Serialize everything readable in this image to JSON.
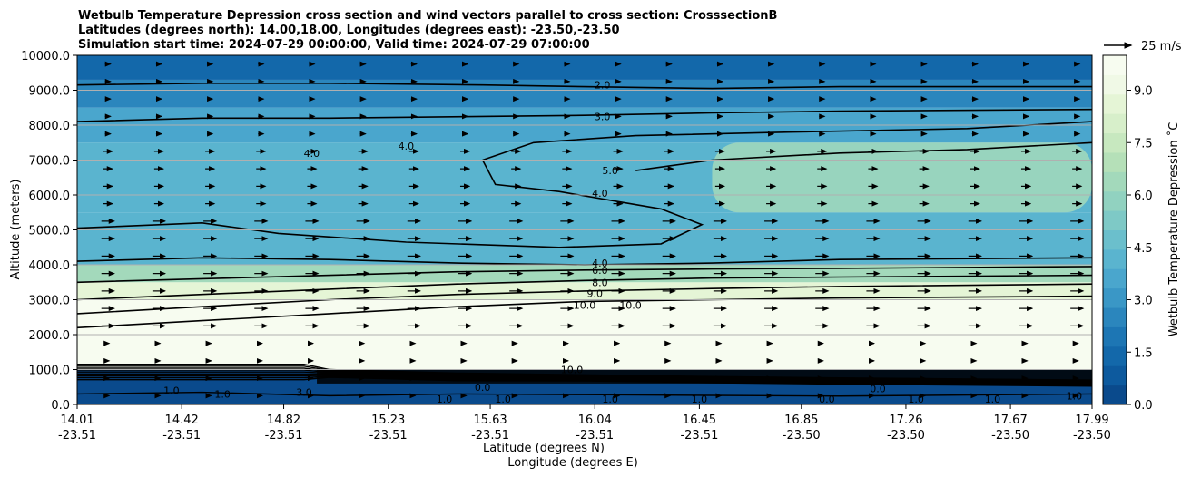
{
  "title": {
    "line1": "Wetbulb Temperature Depression cross section and wind vectors parallel to cross section: CrosssectionB",
    "line2": "Latitudes (degrees north): 14.00,18.00, Longitudes (degrees east): -23.50,-23.50",
    "line3": "Simulation start time: 2024-07-29 00:00:00, Valid time: 2024-07-29 07:00:00"
  },
  "chart_data": {
    "type": "heatmap",
    "xlabel": "Latitude (degrees N)",
    "xlabel2": "Longitude (degrees E)",
    "ylabel": "Altitude (meters)",
    "ylim": [
      0,
      10000
    ],
    "yticks": [
      "0.0",
      "1000.0",
      "2000.0",
      "3000.0",
      "4000.0",
      "5000.0",
      "6000.0",
      "7000.0",
      "8000.0",
      "9000.0",
      "10000.0"
    ],
    "ytick_values": [
      0,
      1000,
      2000,
      3000,
      4000,
      5000,
      6000,
      7000,
      8000,
      9000,
      10000
    ],
    "xlim": [
      14.01,
      17.99
    ],
    "xticks": [
      {
        "lat": "14.01",
        "lon": "-23.51",
        "value": 14.01
      },
      {
        "lat": "14.42",
        "lon": "-23.51",
        "value": 14.42
      },
      {
        "lat": "14.82",
        "lon": "-23.51",
        "value": 14.82
      },
      {
        "lat": "15.23",
        "lon": "-23.51",
        "value": 15.23
      },
      {
        "lat": "15.63",
        "lon": "-23.51",
        "value": 15.63
      },
      {
        "lat": "16.04",
        "lon": "-23.51",
        "value": 16.04
      },
      {
        "lat": "16.45",
        "lon": "-23.51",
        "value": 16.45
      },
      {
        "lat": "16.85",
        "lon": "-23.50",
        "value": 16.85
      },
      {
        "lat": "17.26",
        "lon": "-23.50",
        "value": 17.26
      },
      {
        "lat": "17.67",
        "lon": "-23.50",
        "value": 17.67
      },
      {
        "lat": "17.99",
        "lon": "-23.50",
        "value": 17.99
      }
    ],
    "grid": true,
    "colorbar": {
      "label": "Wetbulb Temperature Depression $^\\circ$C",
      "display_label": "Wetbulb Temperature Depression ˚C",
      "range": [
        0,
        10
      ],
      "ticks": [
        "0.0",
        "1.5",
        "3.0",
        "4.5",
        "6.0",
        "7.5",
        "9.0"
      ],
      "tick_values": [
        0,
        1.5,
        3.0,
        4.5,
        6.0,
        7.5,
        9.0
      ],
      "colors": [
        "#0a4a8c",
        "#0d5a9e",
        "#1368aa",
        "#1d76b4",
        "#2b86bd",
        "#3a97c6",
        "#4aa6cd",
        "#5ab4cf",
        "#6bbfcc",
        "#7ec9c6",
        "#91d2c0",
        "#a3d9bb",
        "#b5e0b8",
        "#c7e8bf",
        "#d7efca",
        "#e5f5d6",
        "#f0f9e6",
        "#f7fcf0"
      ]
    },
    "wind_key": {
      "label": "25 m/s",
      "value": 25
    },
    "layers": [
      {
        "ymin": 0,
        "ymax": 1000,
        "value": 0.5
      },
      {
        "ymin": 1000,
        "ymax": 2000,
        "value": 10.5
      },
      {
        "ymin": 2000,
        "ymax": 3000,
        "value": 10.2
      },
      {
        "ymin": 3000,
        "ymax": 3500,
        "value": 8.5
      },
      {
        "ymin": 3500,
        "ymax": 4000,
        "value": 6.5
      },
      {
        "ymin": 4000,
        "ymax": 5500,
        "value": 4.2
      },
      {
        "ymin": 5500,
        "ymax": 7500,
        "value": 4.0
      },
      {
        "ymin": 7500,
        "ymax": 8500,
        "value": 3.5
      },
      {
        "ymin": 8500,
        "ymax": 9300,
        "value": 2.5
      },
      {
        "ymin": 9300,
        "ymax": 10000,
        "value": 1.5
      }
    ],
    "right_region": {
      "xmin": 16.5,
      "xmax": 17.99,
      "ymin": 5500,
      "ymax": 7500,
      "value": 6.5
    },
    "contours": [
      {
        "level": "2.0",
        "points": [
          [
            14.01,
            9150
          ],
          [
            14.5,
            9200
          ],
          [
            15.0,
            9200
          ],
          [
            15.6,
            9150
          ],
          [
            16.0,
            9100
          ],
          [
            16.5,
            9050
          ],
          [
            17.0,
            9100
          ],
          [
            17.99,
            9100
          ]
        ],
        "label_x": 16.07,
        "label_y": 9150
      },
      {
        "level": "3.0",
        "points": [
          [
            14.01,
            8100
          ],
          [
            14.5,
            8200
          ],
          [
            15.0,
            8200
          ],
          [
            15.6,
            8250
          ],
          [
            16.0,
            8280
          ],
          [
            16.5,
            8350
          ],
          [
            17.0,
            8400
          ],
          [
            17.99,
            8450
          ]
        ],
        "label_x": 16.07,
        "label_y": 8250
      },
      {
        "level": "4.0",
        "points": [
          [
            15.6,
            7000
          ],
          [
            15.8,
            7500
          ],
          [
            16.2,
            7700
          ],
          [
            16.8,
            7800
          ],
          [
            17.5,
            7900
          ],
          [
            17.99,
            8100
          ]
        ],
        "label_x": null,
        "label_y": null
      },
      {
        "level": "5.0",
        "points": [
          [
            16.2,
            6700
          ],
          [
            16.5,
            7000
          ],
          [
            17.0,
            7200
          ],
          [
            17.5,
            7300
          ],
          [
            17.99,
            7500
          ]
        ],
        "label_x": 16.1,
        "label_y": 6700
      },
      {
        "level": "4.0",
        "points": [
          [
            15.6,
            7000
          ],
          [
            15.65,
            6300
          ],
          [
            15.9,
            6100
          ],
          [
            16.3,
            5600
          ],
          [
            16.46,
            5150
          ],
          [
            16.3,
            4600
          ],
          [
            15.9,
            4500
          ],
          [
            15.3,
            4650
          ],
          [
            14.8,
            4900
          ],
          [
            14.5,
            5200
          ],
          [
            14.01,
            5050
          ]
        ],
        "label_x": 16.06,
        "label_y": 6050
      },
      {
        "level": "4.0",
        "points": [
          [
            14.01,
            4100
          ],
          [
            14.5,
            4200
          ],
          [
            15.0,
            4150
          ],
          [
            15.5,
            4050
          ],
          [
            16.0,
            4000
          ],
          [
            16.5,
            4050
          ],
          [
            17.0,
            4150
          ],
          [
            17.99,
            4200
          ]
        ],
        "label_x": 16.06,
        "label_y": 4050
      },
      {
        "level": "6.0",
        "points": [
          [
            14.01,
            3500
          ],
          [
            14.5,
            3600
          ],
          [
            15.0,
            3700
          ],
          [
            15.5,
            3800
          ],
          [
            16.0,
            3850
          ],
          [
            16.5,
            3880
          ],
          [
            17.0,
            3900
          ],
          [
            17.99,
            3950
          ]
        ],
        "label_x": 16.06,
        "label_y": 3850
      },
      {
        "level": "8.0",
        "points": [
          [
            14.01,
            3000
          ],
          [
            14.5,
            3150
          ],
          [
            15.0,
            3300
          ],
          [
            15.5,
            3450
          ],
          [
            16.0,
            3550
          ],
          [
            16.5,
            3620
          ],
          [
            17.0,
            3650
          ],
          [
            17.99,
            3700
          ]
        ],
        "label_x": 16.06,
        "label_y": 3500
      },
      {
        "level": "9.0",
        "points": [
          [
            14.01,
            2600
          ],
          [
            14.5,
            2800
          ],
          [
            15.0,
            3000
          ],
          [
            15.5,
            3150
          ],
          [
            16.0,
            3250
          ],
          [
            16.5,
            3320
          ],
          [
            17.0,
            3380
          ],
          [
            17.99,
            3450
          ]
        ],
        "label_x": 16.04,
        "label_y": 3180
      },
      {
        "level": "10.0",
        "points": [
          [
            14.01,
            2200
          ],
          [
            14.5,
            2400
          ],
          [
            15.0,
            2600
          ],
          [
            15.5,
            2800
          ],
          [
            16.0,
            2950
          ],
          [
            16.5,
            3000
          ],
          [
            17.0,
            3050
          ],
          [
            17.99,
            3100
          ]
        ],
        "label_x": 16.0,
        "label_y": 2850
      }
    ],
    "extra_labels": [
      {
        "text": "4.0",
        "x": 14.93,
        "y": 7200
      },
      {
        "text": "4.0",
        "x": 15.3,
        "y": 7400
      },
      {
        "text": "10.0",
        "x": 16.18,
        "y": 2850
      },
      {
        "text": "10.0",
        "x": 15.95,
        "y": 1000
      },
      {
        "text": "0.0",
        "x": 15.6,
        "y": 500
      },
      {
        "text": "0.0",
        "x": 17.15,
        "y": 450
      },
      {
        "text": "1.0",
        "x": 14.38,
        "y": 400
      },
      {
        "text": "1.0",
        "x": 14.58,
        "y": 300
      },
      {
        "text": "3.0",
        "x": 14.9,
        "y": 350
      },
      {
        "text": "1.0",
        "x": 15.45,
        "y": 150
      },
      {
        "text": "1.0",
        "x": 15.68,
        "y": 150
      },
      {
        "text": "1.0",
        "x": 16.1,
        "y": 150
      },
      {
        "text": "1.0",
        "x": 16.45,
        "y": 150
      },
      {
        "text": "1.0",
        "x": 17.3,
        "y": 150
      },
      {
        "text": "1.0",
        "x": 17.6,
        "y": 150
      },
      {
        "text": "1.0",
        "x": 17.92,
        "y": 250
      },
      {
        "text": "0.0",
        "x": 16.95,
        "y": 150
      }
    ]
  }
}
